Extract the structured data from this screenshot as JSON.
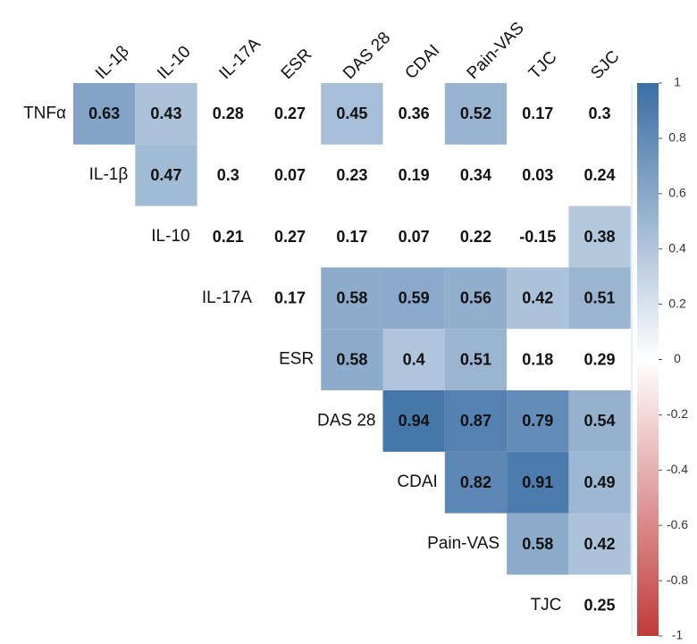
{
  "chart_data": {
    "type": "heatmap",
    "rows": [
      "TNFα",
      "IL-1β",
      "IL-10",
      "IL-17A",
      "ESR",
      "DAS 28",
      "CDAI",
      "Pain-VAS",
      "TJC"
    ],
    "columns": [
      "IL-1β",
      "IL-10",
      "IL-17A",
      "ESR",
      "DAS 28",
      "CDAI",
      "Pain-VAS",
      "TJC",
      "SJC"
    ],
    "values": [
      [
        0.63,
        0.43,
        0.28,
        0.27,
        0.45,
        0.36,
        0.52,
        0.17,
        0.3
      ],
      [
        null,
        0.47,
        0.3,
        0.07,
        0.23,
        0.19,
        0.34,
        0.03,
        0.24
      ],
      [
        null,
        null,
        0.21,
        0.27,
        0.17,
        0.07,
        0.22,
        -0.15,
        0.38
      ],
      [
        null,
        null,
        null,
        0.17,
        0.58,
        0.59,
        0.56,
        0.42,
        0.51
      ],
      [
        null,
        null,
        null,
        null,
        0.58,
        0.4,
        0.51,
        0.18,
        0.29
      ],
      [
        null,
        null,
        null,
        null,
        null,
        0.94,
        0.87,
        0.79,
        0.54
      ],
      [
        null,
        null,
        null,
        null,
        null,
        null,
        0.82,
        0.91,
        0.49
      ],
      [
        null,
        null,
        null,
        null,
        null,
        null,
        null,
        0.58,
        0.42
      ],
      [
        null,
        null,
        null,
        null,
        null,
        null,
        null,
        null,
        0.25
      ]
    ],
    "filled": [
      [
        true,
        true,
        false,
        false,
        true,
        false,
        true,
        false,
        false
      ],
      [
        false,
        true,
        false,
        false,
        false,
        false,
        false,
        false,
        false
      ],
      [
        false,
        false,
        false,
        false,
        false,
        false,
        false,
        false,
        true
      ],
      [
        false,
        false,
        false,
        false,
        true,
        true,
        true,
        true,
        true
      ],
      [
        false,
        false,
        false,
        false,
        true,
        true,
        true,
        false,
        false
      ],
      [
        false,
        false,
        false,
        false,
        false,
        true,
        true,
        true,
        true
      ],
      [
        false,
        false,
        false,
        false,
        false,
        false,
        true,
        true,
        true
      ],
      [
        false,
        false,
        false,
        false,
        false,
        false,
        false,
        true,
        true
      ],
      [
        false,
        false,
        false,
        false,
        false,
        false,
        false,
        false,
        false
      ]
    ],
    "colors": [
      "#c23a3a",
      "#ffffff",
      "#3a6ea5"
    ],
    "zlim": [
      -1,
      1
    ],
    "zticks": [
      1,
      0.8,
      0.6,
      0.4,
      0.2,
      0,
      -0.2,
      -0.4,
      -0.6,
      -0.8,
      -1
    ]
  }
}
